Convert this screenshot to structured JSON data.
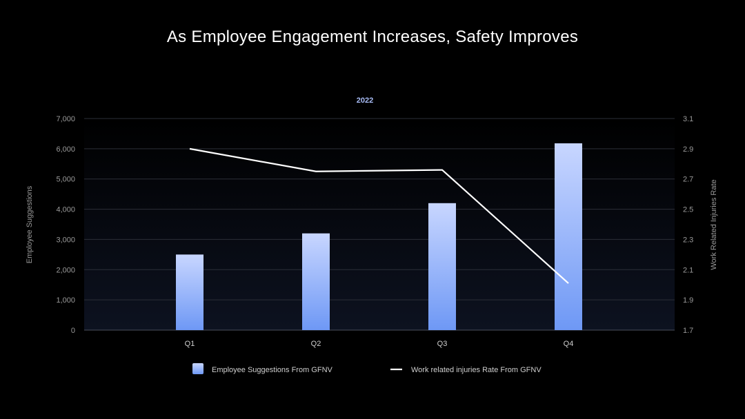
{
  "chart_data": {
    "type": "bar",
    "title": "As Employee Engagement Increases, Safety Improves",
    "subtitle": "2022",
    "categories": [
      "Q1",
      "Q2",
      "Q3",
      "Q4"
    ],
    "series": [
      {
        "name": "Employee Suggestions From GFNV",
        "type": "bar",
        "axis": "left",
        "values": [
          2500,
          3200,
          4200,
          6180
        ]
      },
      {
        "name": "Work related injuries Rate From GFNV",
        "type": "line",
        "axis": "right",
        "values": [
          2.9,
          2.75,
          2.76,
          2.01
        ]
      }
    ],
    "ylabel": "Employee Suggestions",
    "y2label": "Work Related Injuries Rate",
    "ylim": [
      0,
      7000
    ],
    "y2lim": [
      1.7,
      3.1
    ],
    "yticks": [
      "0",
      "1,000",
      "2,000",
      "3,000",
      "4,000",
      "5,000",
      "6,000",
      "7,000"
    ],
    "y2ticks": [
      "1.7",
      "1.9",
      "2.1",
      "2.3",
      "2.5",
      "2.7",
      "2.9",
      "3.1"
    ],
    "grid": true,
    "legend_position": "bottom",
    "colors": {
      "bar_top": "#c8d6ff",
      "bar_bottom": "#6e98f5",
      "line": "#ffffff",
      "subtitle": "#a9bdf7"
    }
  }
}
